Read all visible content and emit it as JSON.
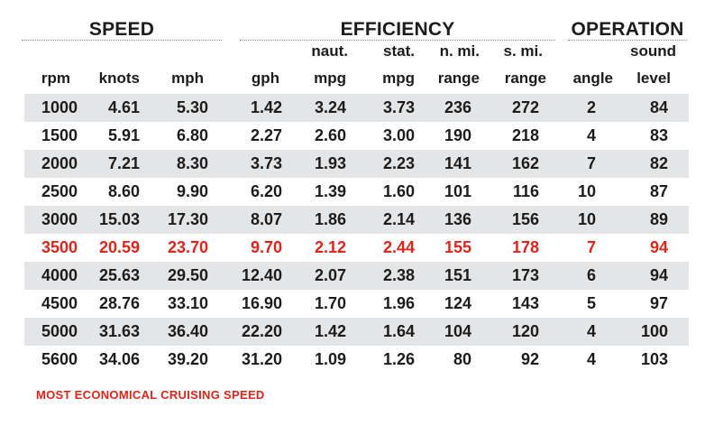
{
  "groups": {
    "speed": "SPEED",
    "efficiency": "EFFICIENCY",
    "operation": "OPERATION"
  },
  "headers": {
    "rpm": [
      "",
      "rpm"
    ],
    "knots": [
      "",
      "knots"
    ],
    "mph": [
      "",
      "mph"
    ],
    "gph": [
      "",
      "gph"
    ],
    "naut_mpg": [
      "naut.",
      "mpg"
    ],
    "stat_mpg": [
      "stat.",
      "mpg"
    ],
    "nmi_range": [
      "n. mi.",
      "range"
    ],
    "smi_range": [
      "s. mi.",
      "range"
    ],
    "angle": [
      "",
      "angle"
    ],
    "sound_level": [
      "sound",
      "level"
    ]
  },
  "rows": [
    [
      "1000",
      "4.61",
      "5.30",
      "1.42",
      "3.24",
      "3.73",
      "236",
      "272",
      "2",
      "84"
    ],
    [
      "1500",
      "5.91",
      "6.80",
      "2.27",
      "2.60",
      "3.00",
      "190",
      "218",
      "4",
      "83"
    ],
    [
      "2000",
      "7.21",
      "8.30",
      "3.73",
      "1.93",
      "2.23",
      "141",
      "162",
      "7",
      "82"
    ],
    [
      "2500",
      "8.60",
      "9.90",
      "6.20",
      "1.39",
      "1.60",
      "101",
      "116",
      "10",
      "87"
    ],
    [
      "3000",
      "15.03",
      "17.30",
      "8.07",
      "1.86",
      "2.14",
      "136",
      "156",
      "10",
      "89"
    ],
    [
      "3500",
      "20.59",
      "23.70",
      "9.70",
      "2.12",
      "2.44",
      "155",
      "178",
      "7",
      "94"
    ],
    [
      "4000",
      "25.63",
      "29.50",
      "12.40",
      "2.07",
      "2.38",
      "151",
      "173",
      "6",
      "94"
    ],
    [
      "4500",
      "28.76",
      "33.10",
      "16.90",
      "1.70",
      "1.96",
      "124",
      "143",
      "5",
      "97"
    ],
    [
      "5000",
      "31.63",
      "36.40",
      "22.20",
      "1.42",
      "1.64",
      "104",
      "120",
      "4",
      "100"
    ],
    [
      "5600",
      "34.06",
      "39.20",
      "31.20",
      "1.09",
      "1.26",
      "80",
      "92",
      "4",
      "103"
    ]
  ],
  "highlight_row": 5,
  "note": "MOST ECONOMICAL CRUISING SPEED",
  "colors": {
    "highlight": "#e2231a",
    "row_shade": "#e4e5e6",
    "text": "#1c1c1c"
  }
}
